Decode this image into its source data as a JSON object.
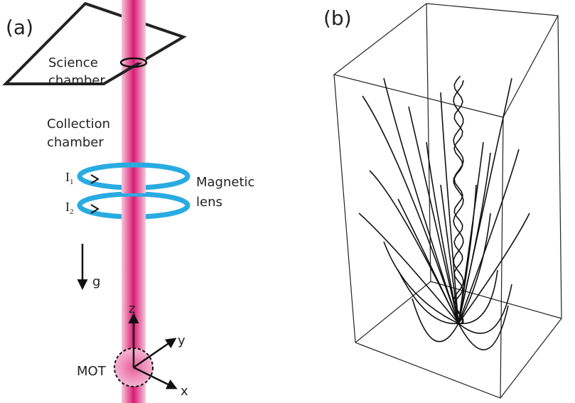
{
  "panel_a": {
    "label": "(a)",
    "science_chamber": [
      "Science",
      "chamber"
    ],
    "collection_chamber": [
      "Collection",
      "chamber"
    ],
    "currents": [
      {
        "symbol": "I",
        "subscript": "1"
      },
      {
        "symbol": "I",
        "subscript": "2"
      }
    ],
    "magnetic_lens": [
      "Magnetic",
      "lens"
    ],
    "gravity": "g",
    "axes": {
      "z": "z",
      "y": "y",
      "x": "x"
    },
    "mot": "MOT"
  },
  "panel_b": {
    "label": "(b)"
  }
}
